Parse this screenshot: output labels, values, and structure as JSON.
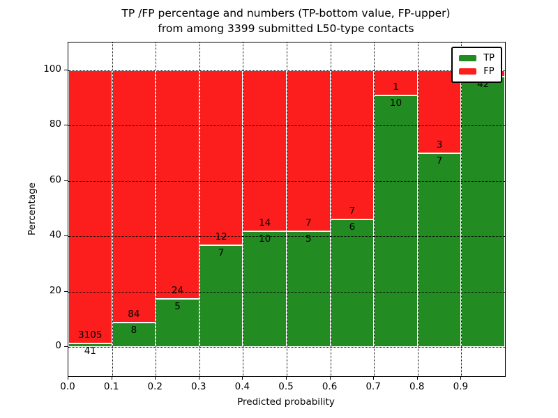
{
  "figure": {
    "title_line1": "TP /FP percentage and numbers (TP-bottom value, FP-upper)",
    "title_line2": "from among 3399 submitted L50-type contacts",
    "xlabel": "Predicted probability",
    "ylabel": "Percentage"
  },
  "legend": {
    "position": "upper right",
    "entries": [
      {
        "label": "TP",
        "color": "#228B22"
      },
      {
        "label": "FP",
        "color": "#fc1d1d"
      }
    ]
  },
  "chart_data": {
    "type": "bar",
    "variant": "stacked-percentage-histogram",
    "title": "TP /FP percentage and numbers (TP-bottom value, FP-upper) from among 3399 submitted L50-type contacts",
    "xlabel": "Predicted probability",
    "ylabel": "Percentage",
    "total_submitted_contacts": 3399,
    "x_tick_labels": [
      "0.0",
      "0.1",
      "0.2",
      "0.3",
      "0.4",
      "0.5",
      "0.6",
      "0.7",
      "0.8",
      "0.9"
    ],
    "y_ticks": [
      0,
      20,
      40,
      60,
      80,
      100
    ],
    "xlim": [
      0.0,
      1.0
    ],
    "ylim": [
      -10.5,
      110
    ],
    "grid": "dotted-black-both-axes",
    "legend_position": "upper right",
    "colors": {
      "tp": "#228B22",
      "fp": "#fc1d1d",
      "bar_edge": "#ffffff"
    },
    "bins": [
      {
        "x_start": 0.0,
        "x_end": 0.1,
        "tp": 41,
        "fp": 3105,
        "tp_label": "41",
        "fp_label": "3105"
      },
      {
        "x_start": 0.1,
        "x_end": 0.2,
        "tp": 8,
        "fp": 84,
        "tp_label": "8",
        "fp_label": "84"
      },
      {
        "x_start": 0.2,
        "x_end": 0.3,
        "tp": 5,
        "fp": 24,
        "tp_label": "5",
        "fp_label": "24"
      },
      {
        "x_start": 0.3,
        "x_end": 0.4,
        "tp": 7,
        "fp": 12,
        "tp_label": "7",
        "fp_label": "12"
      },
      {
        "x_start": 0.4,
        "x_end": 0.5,
        "tp": 10,
        "fp": 14,
        "tp_label": "10",
        "fp_label": "14"
      },
      {
        "x_start": 0.5,
        "x_end": 0.6,
        "tp": 5,
        "fp": 7,
        "tp_label": "5",
        "fp_label": "7"
      },
      {
        "x_start": 0.6,
        "x_end": 0.7,
        "tp": 6,
        "fp": 7,
        "tp_label": "6",
        "fp_label": "7"
      },
      {
        "x_start": 0.7,
        "x_end": 0.8,
        "tp": 10,
        "fp": 1,
        "tp_label": "10",
        "fp_label": "1"
      },
      {
        "x_start": 0.8,
        "x_end": 0.9,
        "tp": 7,
        "fp": 3,
        "tp_label": "7",
        "fp_label": "3"
      },
      {
        "x_start": 0.9,
        "x_end": 1.0,
        "tp": 42,
        "fp": 1,
        "tp_label": "42",
        "fp_label": ""
      }
    ]
  }
}
